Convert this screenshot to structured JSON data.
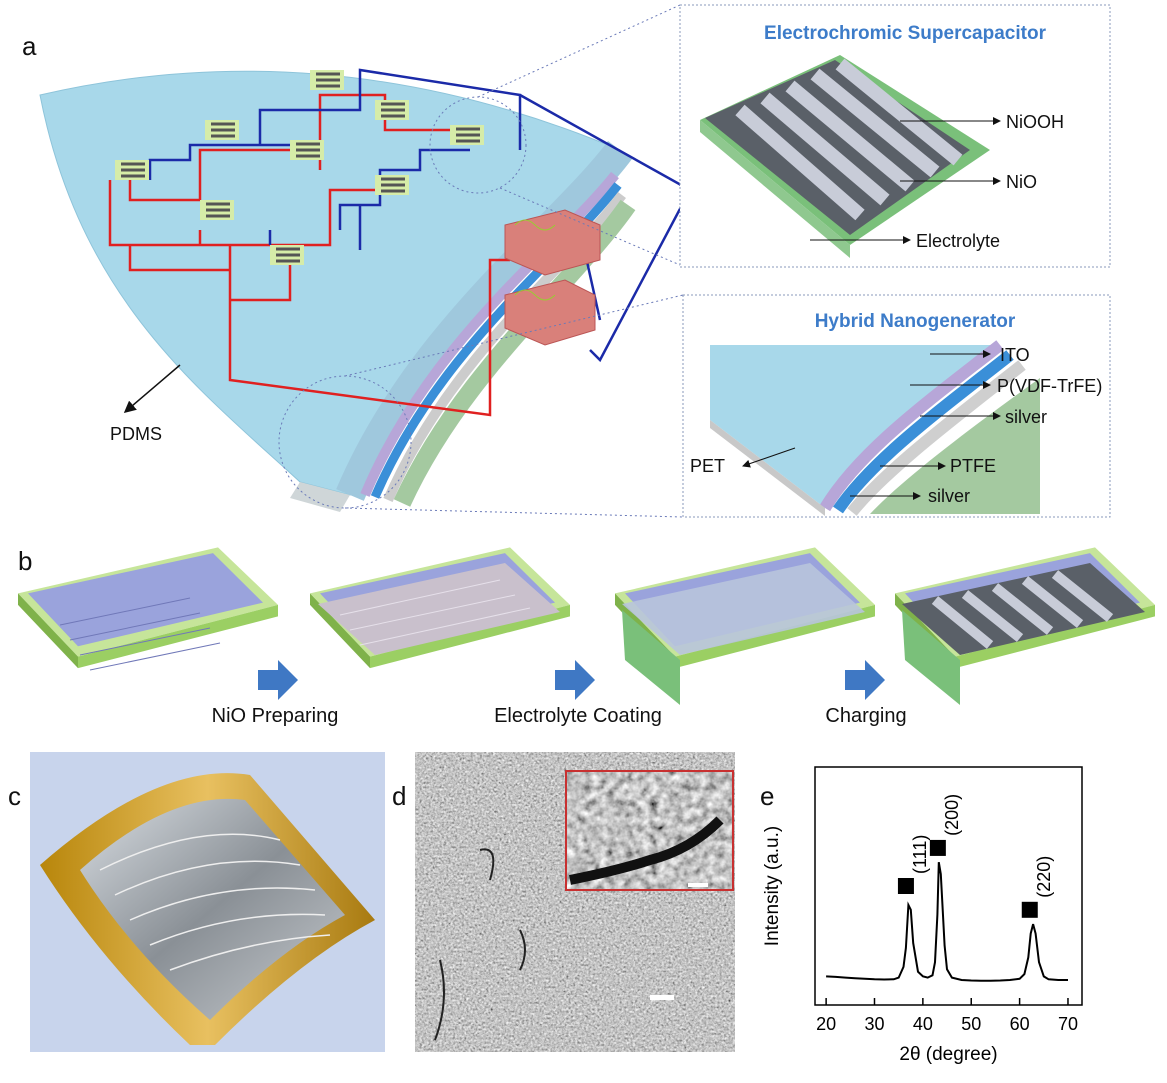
{
  "figure": {
    "panel_labels": [
      "a",
      "b",
      "c",
      "d",
      "e"
    ],
    "a": {
      "pdms": "PDMS",
      "supercapacitor": {
        "title": "Electrochromic Supercapacitor",
        "labels": [
          "NiOOH",
          "NiO",
          "Electrolyte"
        ]
      },
      "nanogenerator": {
        "title": "Hybrid Nanogenerator",
        "labels": [
          "ITO",
          "P(VDF-TrFE)",
          "silver",
          "PET",
          "PTFE",
          "silver"
        ]
      }
    },
    "b": {
      "steps": [
        "NiO Preparing",
        "Electrolyte Coating",
        "Charging"
      ]
    }
  },
  "chart_data": {
    "type": "line",
    "xlabel": "2θ (degree)",
    "ylabel": "Intensity (a.u.)",
    "color": "#000000",
    "x": [
      20,
      22,
      24,
      26,
      28,
      30,
      32,
      34,
      35,
      36,
      36.5,
      37,
      37.5,
      38,
      39,
      40,
      41,
      42,
      42.5,
      43,
      43.3,
      43.7,
      44,
      44.5,
      45,
      46,
      48,
      50,
      52,
      54,
      56,
      58,
      60,
      61,
      61.8,
      62.3,
      62.8,
      63.3,
      64,
      65,
      66,
      68,
      70
    ],
    "values": [
      12,
      11.8,
      11.5,
      11.2,
      11,
      10.8,
      10.7,
      10.8,
      11.5,
      16,
      24,
      42,
      40,
      26,
      14,
      12,
      11.5,
      12.5,
      18,
      38,
      60,
      55,
      44,
      25,
      15,
      11.5,
      10.5,
      10.3,
      10.2,
      10.2,
      10.3,
      10.5,
      11,
      13,
      20,
      30,
      34,
      30,
      18,
      12,
      10.8,
      10.5,
      10.5
    ],
    "xlim": [
      17.7,
      72.9
    ],
    "ylim": [
      0,
      100
    ],
    "xticks": [
      20,
      30,
      40,
      50,
      60,
      70
    ],
    "annotations": [
      {
        "text": "(111)",
        "x": 36.5,
        "y": 50
      },
      {
        "text": "(200)",
        "x": 43.1,
        "y": 66
      },
      {
        "text": "(220)",
        "x": 62.1,
        "y": 40
      }
    ]
  }
}
